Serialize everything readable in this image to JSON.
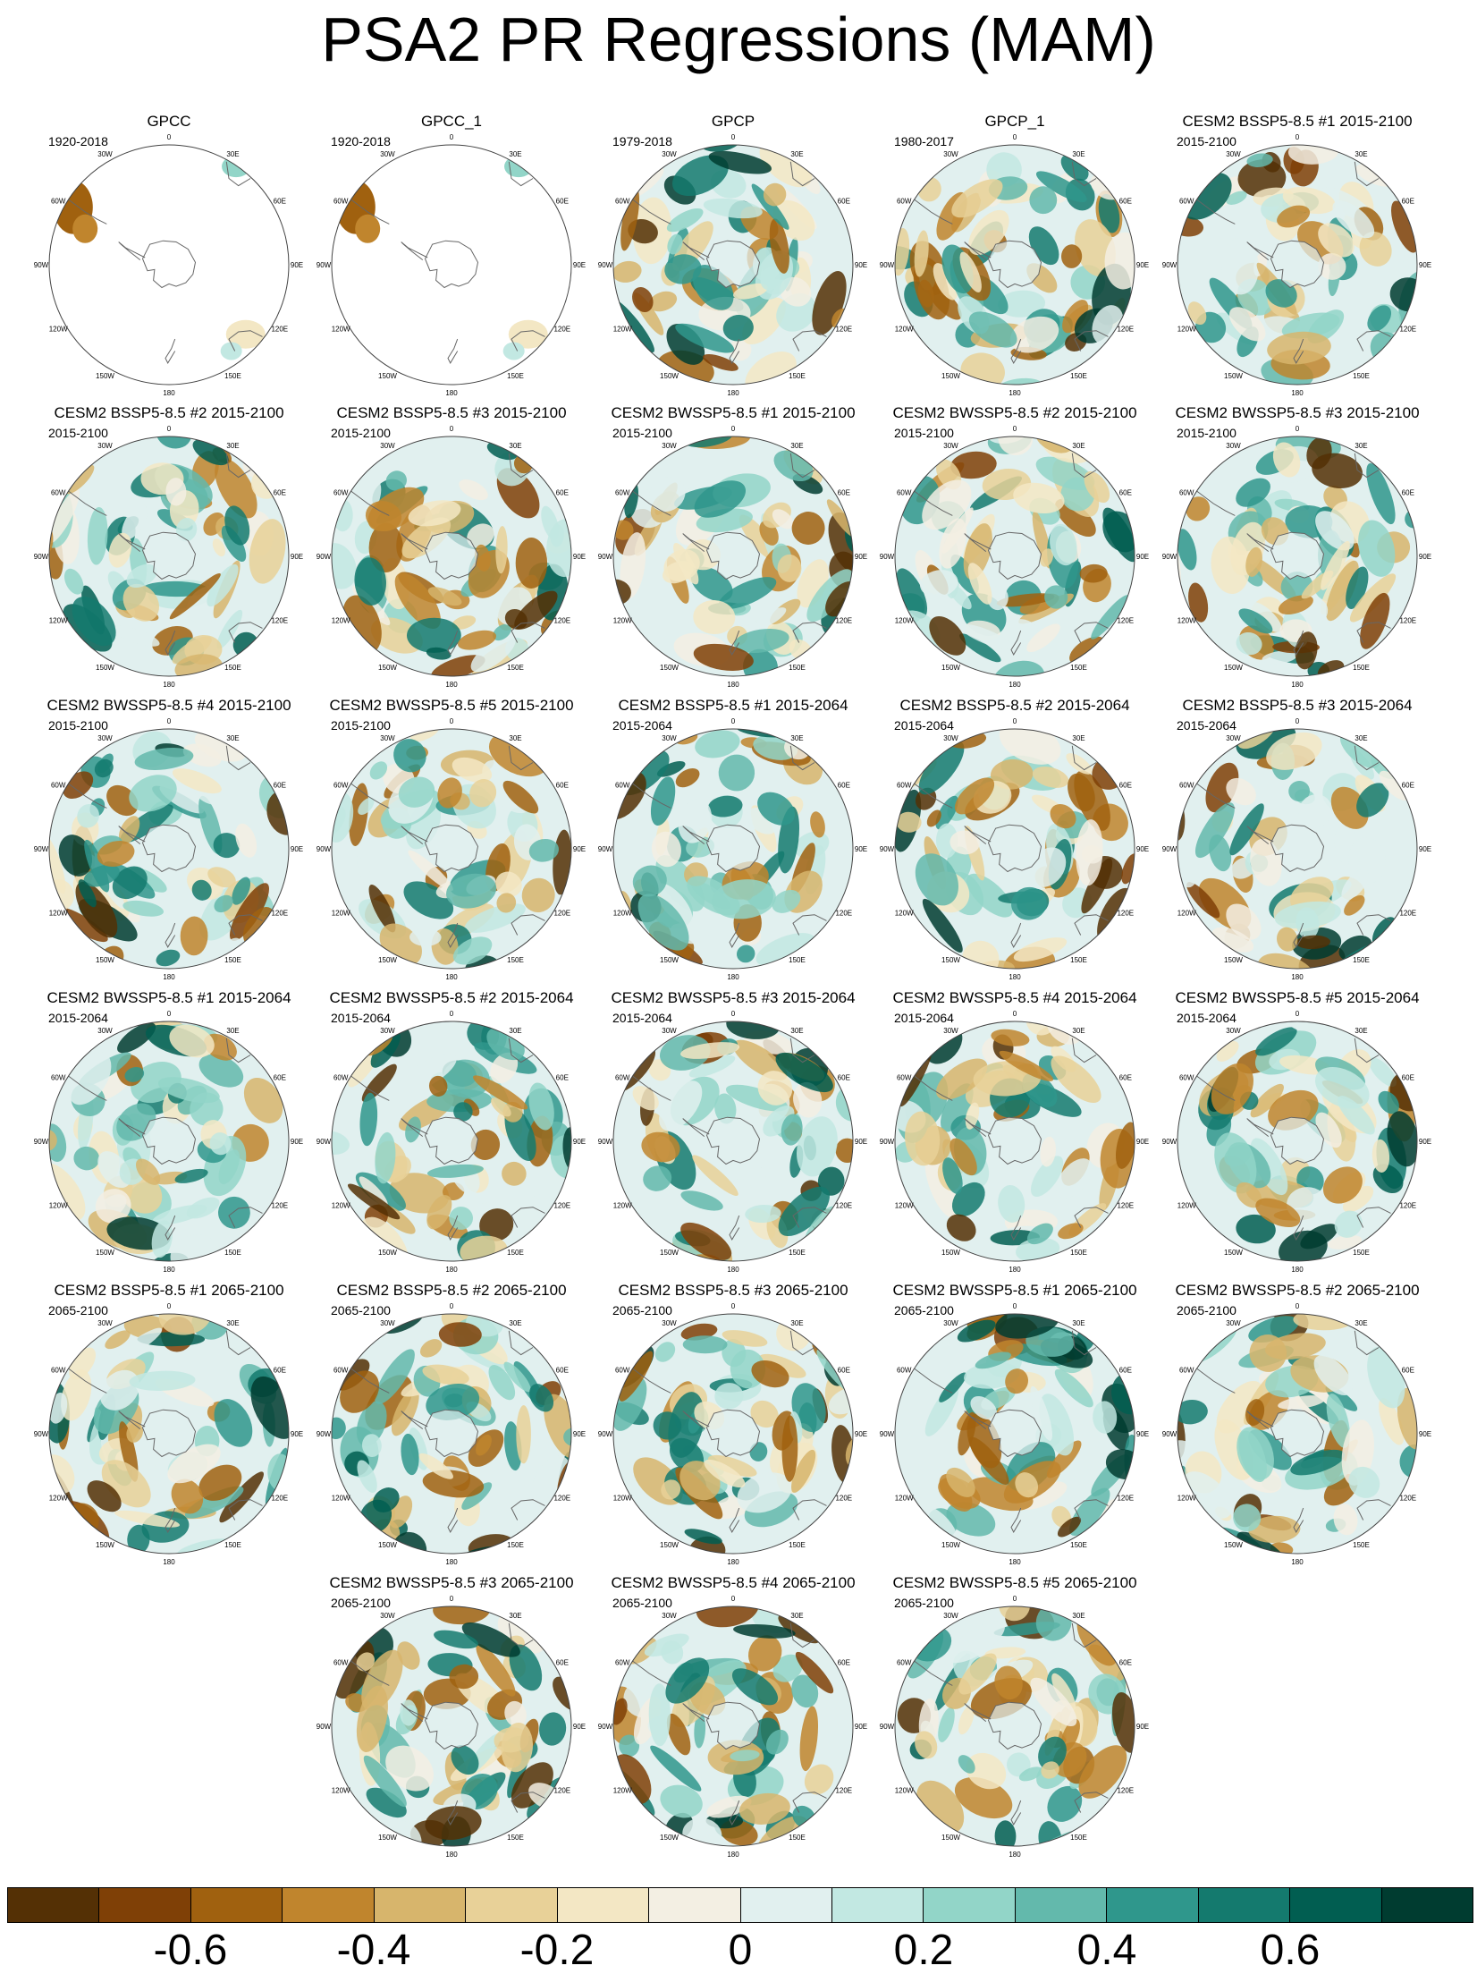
{
  "title": "PSA2 PR Regressions (MAM)",
  "longitude_labels": [
    "0",
    "30E",
    "60E",
    "90E",
    "120E",
    "150E",
    "180",
    "150W",
    "120W",
    "90W",
    "60W",
    "30W"
  ],
  "colors": {
    "land_outline": "#666666",
    "circle_outline": "#444444"
  },
  "panels": [
    {
      "title": "GPCC",
      "period": "1920-2018",
      "observation_mask": true
    },
    {
      "title": "GPCC_1",
      "period": "1920-2018",
      "observation_mask": true
    },
    {
      "title": "GPCP",
      "period": "1979-2018"
    },
    {
      "title": "GPCP_1",
      "period": "1980-2017"
    },
    {
      "title": "CESM2 BSSP5-8.5 #1 2015-2100",
      "period": "2015-2100"
    },
    {
      "title": "CESM2 BSSP5-8.5 #2 2015-2100",
      "period": "2015-2100"
    },
    {
      "title": "CESM2 BSSP5-8.5 #3 2015-2100",
      "period": "2015-2100"
    },
    {
      "title": "CESM2 BWSSP5-8.5 #1 2015-2100",
      "period": "2015-2100"
    },
    {
      "title": "CESM2 BWSSP5-8.5 #2 2015-2100",
      "period": "2015-2100"
    },
    {
      "title": "CESM2 BWSSP5-8.5 #3 2015-2100",
      "period": "2015-2100"
    },
    {
      "title": "CESM2 BWSSP5-8.5 #4 2015-2100",
      "period": "2015-2100"
    },
    {
      "title": "CESM2 BWSSP5-8.5 #5 2015-2100",
      "period": "2015-2100"
    },
    {
      "title": "CESM2 BSSP5-8.5 #1 2015-2064",
      "period": "2015-2064"
    },
    {
      "title": "CESM2 BSSP5-8.5 #2 2015-2064",
      "period": "2015-2064"
    },
    {
      "title": "CESM2 BSSP5-8.5 #3 2015-2064",
      "period": "2015-2064"
    },
    {
      "title": "CESM2 BWSSP5-8.5 #1 2015-2064",
      "period": "2015-2064"
    },
    {
      "title": "CESM2 BWSSP5-8.5 #2 2015-2064",
      "period": "2015-2064"
    },
    {
      "title": "CESM2 BWSSP5-8.5 #3 2015-2064",
      "period": "2015-2064"
    },
    {
      "title": "CESM2 BWSSP5-8.5 #4 2015-2064",
      "period": "2015-2064"
    },
    {
      "title": "CESM2 BWSSP5-8.5 #5 2015-2064",
      "period": "2015-2064"
    },
    {
      "title": "CESM2 BSSP5-8.5 #1 2065-2100",
      "period": "2065-2100"
    },
    {
      "title": "CESM2 BSSP5-8.5 #2 2065-2100",
      "period": "2065-2100"
    },
    {
      "title": "CESM2 BSSP5-8.5 #3 2065-2100",
      "period": "2065-2100"
    },
    {
      "title": "CESM2 BWSSP5-8.5 #1 2065-2100",
      "period": "2065-2100"
    },
    {
      "title": "CESM2 BWSSP5-8.5 #2 2065-2100",
      "period": "2065-2100"
    },
    {
      "title": "CESM2 BWSSP5-8.5 #3 2065-2100",
      "period": "2065-2100"
    },
    {
      "title": "CESM2 BWSSP5-8.5 #4 2065-2100",
      "period": "2065-2100"
    },
    {
      "title": "CESM2 BWSSP5-8.5 #5 2065-2100",
      "period": "2065-2100"
    }
  ],
  "chart_data": {
    "type": "heatmap",
    "title": "PSA2 PR Regressions (MAM)",
    "projection": "south polar stereographic",
    "colorbar": {
      "min": -0.8,
      "max": 0.8,
      "step": 0.1,
      "tick_labels": [
        "-0.6",
        "-0.4",
        "-0.2",
        "0",
        "0.2",
        "0.4",
        "0.6"
      ],
      "tick_values": [
        -0.6,
        -0.4,
        -0.2,
        0,
        0.2,
        0.4,
        0.6
      ],
      "colors": [
        "#543005",
        "#7f4006",
        "#a0610f",
        "#c0852d",
        "#d7b56c",
        "#e8d198",
        "#f3e7c4",
        "#f3efe3",
        "#e1f0ef",
        "#c2e8e2",
        "#92d5c8",
        "#63b9ac",
        "#2f978c",
        "#147a6e",
        "#015e51",
        "#003c30"
      ]
    }
  }
}
